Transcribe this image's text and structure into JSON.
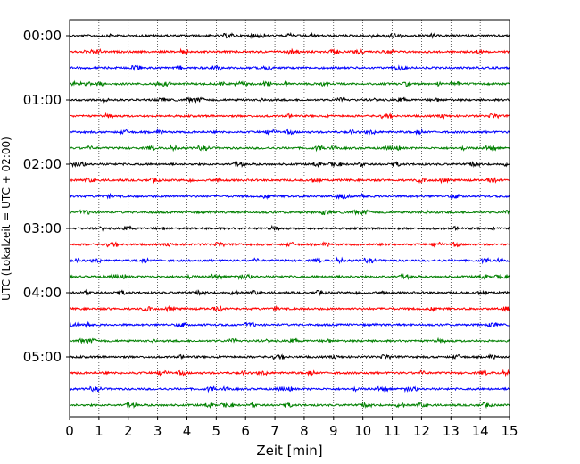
{
  "chart_data": {
    "type": "line",
    "title": "",
    "xlabel": "Zeit  [min]",
    "ylabel": "UTC (Lokalzeit = UTC + 02:00)",
    "xlim": [
      0,
      15
    ],
    "x_ticks": [
      "0",
      "1",
      "2",
      "3",
      "4",
      "5",
      "6",
      "7",
      "8",
      "9",
      "10",
      "11",
      "12",
      "13",
      "14",
      "15"
    ],
    "y_tick_labels": [
      "00:00",
      "01:00",
      "02:00",
      "03:00",
      "04:00",
      "05:00"
    ],
    "trace_interval_minutes": 15,
    "trace_count": 24,
    "trace_start_times": [
      "00:00",
      "00:15",
      "00:30",
      "00:45",
      "01:00",
      "01:15",
      "01:30",
      "01:45",
      "02:00",
      "02:15",
      "02:30",
      "02:45",
      "03:00",
      "03:15",
      "03:30",
      "03:45",
      "04:00",
      "04:15",
      "04:30",
      "04:45",
      "05:00",
      "05:15",
      "05:30",
      "05:45"
    ],
    "trace_color_cycle": [
      "#000000",
      "#ff0000",
      "#0000ff",
      "#008000"
    ],
    "grid": "vertical dotted lines at each minute"
  }
}
